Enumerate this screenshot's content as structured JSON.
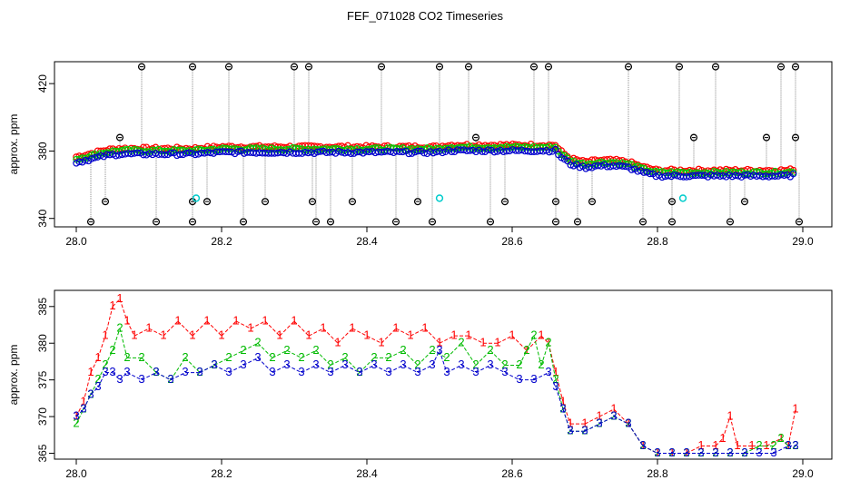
{
  "title": "FEF_071028  CO2 Timeseries",
  "chart_data": [
    {
      "type": "scatter",
      "ylabel": "approx. ppm",
      "xlim": [
        27.97,
        29.04
      ],
      "ylim": [
        335,
        433
      ],
      "xticks": [
        "28.0",
        "28.2",
        "28.4",
        "28.6",
        "28.8",
        "29.0"
      ],
      "yticks": [
        "340",
        "380",
        "420"
      ],
      "colors": {
        "red": "#ff0000",
        "green": "#00cc00",
        "blue": "#0000cc",
        "black": "#000000",
        "cyan": "#00cccc",
        "grey": "#888888"
      },
      "series_base": [
        [
          28.0,
          374
        ],
        [
          28.02,
          376
        ],
        [
          28.04,
          378
        ],
        [
          28.06,
          379
        ],
        [
          28.08,
          379
        ],
        [
          28.1,
          379
        ],
        [
          28.12,
          379
        ],
        [
          28.14,
          379
        ],
        [
          28.16,
          379
        ],
        [
          28.2,
          380
        ],
        [
          28.24,
          380
        ],
        [
          28.28,
          380
        ],
        [
          28.32,
          380
        ],
        [
          28.33,
          380
        ],
        [
          28.36,
          380
        ],
        [
          28.4,
          380
        ],
        [
          28.44,
          380
        ],
        [
          28.48,
          380
        ],
        [
          28.5,
          380
        ],
        [
          28.51,
          381
        ],
        [
          28.54,
          381
        ],
        [
          28.58,
          381
        ],
        [
          28.62,
          381
        ],
        [
          28.66,
          381
        ],
        [
          28.665,
          378
        ],
        [
          28.68,
          373
        ],
        [
          28.7,
          371
        ],
        [
          28.72,
          372
        ],
        [
          28.74,
          372
        ],
        [
          28.76,
          371
        ],
        [
          28.78,
          368
        ],
        [
          28.8,
          366
        ],
        [
          28.82,
          366
        ],
        [
          28.84,
          366
        ],
        [
          28.86,
          366
        ],
        [
          28.88,
          366
        ],
        [
          28.9,
          366
        ],
        [
          28.92,
          366
        ],
        [
          28.94,
          366
        ],
        [
          28.96,
          366
        ],
        [
          28.98,
          366
        ],
        [
          28.99,
          367
        ]
      ],
      "spikes": [
        [
          28.09,
          430
        ],
        [
          28.11,
          338
        ],
        [
          28.16,
          430
        ],
        [
          28.16,
          338
        ],
        [
          28.16,
          350
        ],
        [
          28.21,
          430
        ],
        [
          28.23,
          338
        ],
        [
          28.26,
          350
        ],
        [
          28.3,
          430
        ],
        [
          28.32,
          430
        ],
        [
          28.325,
          350
        ],
        [
          28.33,
          338
        ],
        [
          28.35,
          338
        ],
        [
          28.38,
          350
        ],
        [
          28.42,
          430
        ],
        [
          28.44,
          338
        ],
        [
          28.47,
          350
        ],
        [
          28.49,
          338
        ],
        [
          28.5,
          430
        ],
        [
          28.54,
          430
        ],
        [
          28.57,
          338
        ],
        [
          28.63,
          430
        ],
        [
          28.65,
          430
        ],
        [
          28.66,
          350
        ],
        [
          28.66,
          338
        ],
        [
          28.69,
          338
        ],
        [
          28.71,
          350
        ],
        [
          28.76,
          430
        ],
        [
          28.78,
          338
        ],
        [
          28.82,
          338
        ],
        [
          28.82,
          350
        ],
        [
          28.83,
          430
        ],
        [
          28.85,
          388
        ],
        [
          28.88,
          430
        ],
        [
          28.9,
          338
        ],
        [
          28.92,
          350
        ],
        [
          28.95,
          388
        ],
        [
          28.97,
          430
        ],
        [
          28.99,
          430
        ],
        [
          28.99,
          388
        ],
        [
          28.995,
          338
        ],
        [
          28.04,
          350
        ],
        [
          28.02,
          338
        ],
        [
          28.06,
          388
        ],
        [
          28.18,
          350
        ],
        [
          28.55,
          388
        ],
        [
          28.59,
          350
        ]
      ],
      "cyan_points": [
        [
          28.165,
          352
        ],
        [
          28.5,
          352
        ],
        [
          28.835,
          352
        ]
      ]
    },
    {
      "type": "line",
      "ylabel": "approx. ppm",
      "xlim": [
        27.97,
        29.04
      ],
      "ylim": [
        364.2,
        387.2
      ],
      "xticks": [
        "28.0",
        "28.2",
        "28.4",
        "28.6",
        "28.8",
        "29.0"
      ],
      "yticks": [
        "365",
        "370",
        "375",
        "380",
        "385"
      ],
      "marker_labels": [
        "1",
        "2",
        "3"
      ],
      "series": [
        {
          "marker": "1",
          "color": "#ff0000",
          "points": [
            [
              28.0,
              370
            ],
            [
              28.01,
              372
            ],
            [
              28.02,
              376
            ],
            [
              28.03,
              378
            ],
            [
              28.04,
              381
            ],
            [
              28.05,
              385
            ],
            [
              28.06,
              386
            ],
            [
              28.07,
              383
            ],
            [
              28.08,
              381
            ],
            [
              28.1,
              382
            ],
            [
              28.12,
              381
            ],
            [
              28.14,
              383
            ],
            [
              28.16,
              381
            ],
            [
              28.18,
              383
            ],
            [
              28.2,
              381
            ],
            [
              28.22,
              383
            ],
            [
              28.24,
              382
            ],
            [
              28.26,
              383
            ],
            [
              28.28,
              381
            ],
            [
              28.3,
              383
            ],
            [
              28.32,
              381
            ],
            [
              28.34,
              382
            ],
            [
              28.36,
              380
            ],
            [
              28.38,
              382
            ],
            [
              28.4,
              381
            ],
            [
              28.42,
              380
            ],
            [
              28.44,
              382
            ],
            [
              28.46,
              381
            ],
            [
              28.48,
              382
            ],
            [
              28.5,
              380
            ],
            [
              28.52,
              381
            ],
            [
              28.54,
              381
            ],
            [
              28.56,
              380
            ],
            [
              28.58,
              380
            ],
            [
              28.6,
              381
            ],
            [
              28.62,
              379
            ],
            [
              28.64,
              381
            ],
            [
              28.65,
              380
            ],
            [
              28.66,
              376
            ],
            [
              28.67,
              372
            ],
            [
              28.68,
              369
            ],
            [
              28.7,
              369
            ],
            [
              28.72,
              370
            ],
            [
              28.74,
              371
            ],
            [
              28.76,
              369
            ],
            [
              28.78,
              366
            ],
            [
              28.8,
              365
            ],
            [
              28.82,
              365
            ],
            [
              28.84,
              365
            ],
            [
              28.86,
              366
            ],
            [
              28.88,
              366
            ],
            [
              28.89,
              367
            ],
            [
              28.9,
              370
            ],
            [
              28.91,
              366
            ],
            [
              28.93,
              366
            ],
            [
              28.95,
              366
            ],
            [
              28.97,
              367
            ],
            [
              28.98,
              366
            ],
            [
              28.99,
              371
            ]
          ]
        },
        {
          "marker": "2",
          "color": "#00bb00",
          "points": [
            [
              28.0,
              369
            ],
            [
              28.01,
              371
            ],
            [
              28.02,
              373
            ],
            [
              28.03,
              375
            ],
            [
              28.04,
              377
            ],
            [
              28.05,
              379
            ],
            [
              28.06,
              382
            ],
            [
              28.07,
              378
            ],
            [
              28.09,
              378
            ],
            [
              28.11,
              376
            ],
            [
              28.13,
              375
            ],
            [
              28.15,
              378
            ],
            [
              28.17,
              376
            ],
            [
              28.19,
              377
            ],
            [
              28.21,
              378
            ],
            [
              28.23,
              379
            ],
            [
              28.25,
              380
            ],
            [
              28.27,
              378
            ],
            [
              28.29,
              379
            ],
            [
              28.31,
              378
            ],
            [
              28.33,
              379
            ],
            [
              28.35,
              377
            ],
            [
              28.37,
              378
            ],
            [
              28.39,
              376
            ],
            [
              28.41,
              378
            ],
            [
              28.43,
              378
            ],
            [
              28.45,
              379
            ],
            [
              28.47,
              377
            ],
            [
              28.49,
              379
            ],
            [
              28.51,
              378
            ],
            [
              28.53,
              380
            ],
            [
              28.55,
              377
            ],
            [
              28.57,
              379
            ],
            [
              28.59,
              377
            ],
            [
              28.61,
              377
            ],
            [
              28.62,
              379
            ],
            [
              28.63,
              381
            ],
            [
              28.64,
              377
            ],
            [
              28.65,
              380
            ],
            [
              28.66,
              375
            ],
            [
              28.67,
              371
            ],
            [
              28.68,
              368
            ],
            [
              28.7,
              368
            ],
            [
              28.72,
              369
            ],
            [
              28.74,
              370
            ],
            [
              28.76,
              369
            ],
            [
              28.78,
              366
            ],
            [
              28.8,
              365
            ],
            [
              28.82,
              365
            ],
            [
              28.84,
              365
            ],
            [
              28.86,
              365
            ],
            [
              28.88,
              365
            ],
            [
              28.9,
              365
            ],
            [
              28.92,
              365
            ],
            [
              28.94,
              366
            ],
            [
              28.96,
              366
            ],
            [
              28.97,
              367
            ],
            [
              28.98,
              366
            ],
            [
              28.99,
              366
            ]
          ]
        },
        {
          "marker": "3",
          "color": "#0000cc",
          "points": [
            [
              28.0,
              370
            ],
            [
              28.01,
              371
            ],
            [
              28.02,
              373
            ],
            [
              28.03,
              374
            ],
            [
              28.04,
              376
            ],
            [
              28.05,
              376
            ],
            [
              28.06,
              375
            ],
            [
              28.07,
              376
            ],
            [
              28.09,
              375
            ],
            [
              28.11,
              376
            ],
            [
              28.13,
              375
            ],
            [
              28.15,
              376
            ],
            [
              28.17,
              376
            ],
            [
              28.19,
              377
            ],
            [
              28.21,
              376
            ],
            [
              28.23,
              377
            ],
            [
              28.25,
              378
            ],
            [
              28.27,
              376
            ],
            [
              28.29,
              377
            ],
            [
              28.31,
              376
            ],
            [
              28.33,
              377
            ],
            [
              28.35,
              376
            ],
            [
              28.37,
              377
            ],
            [
              28.39,
              376
            ],
            [
              28.41,
              377
            ],
            [
              28.43,
              376
            ],
            [
              28.45,
              377
            ],
            [
              28.47,
              376
            ],
            [
              28.49,
              377
            ],
            [
              28.5,
              379
            ],
            [
              28.51,
              376
            ],
            [
              28.53,
              377
            ],
            [
              28.55,
              376
            ],
            [
              28.57,
              377
            ],
            [
              28.59,
              376
            ],
            [
              28.61,
              375
            ],
            [
              28.63,
              375
            ],
            [
              28.65,
              376
            ],
            [
              28.66,
              374
            ],
            [
              28.67,
              371
            ],
            [
              28.68,
              368
            ],
            [
              28.7,
              368
            ],
            [
              28.72,
              369
            ],
            [
              28.74,
              370
            ],
            [
              28.76,
              369
            ],
            [
              28.78,
              366
            ],
            [
              28.8,
              365
            ],
            [
              28.82,
              365
            ],
            [
              28.84,
              365
            ],
            [
              28.86,
              365
            ],
            [
              28.88,
              365
            ],
            [
              28.9,
              365
            ],
            [
              28.92,
              365
            ],
            [
              28.94,
              365
            ],
            [
              28.96,
              365
            ],
            [
              28.98,
              366
            ],
            [
              28.99,
              366
            ]
          ]
        }
      ]
    }
  ]
}
